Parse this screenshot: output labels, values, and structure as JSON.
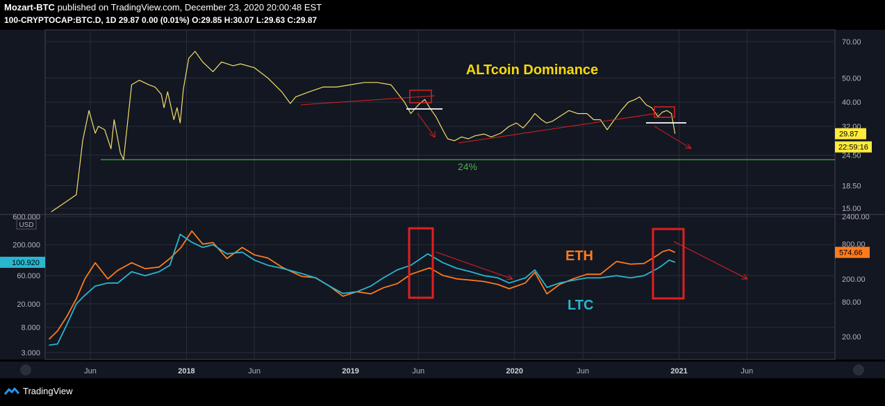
{
  "header": {
    "author": "Mozart-BTC",
    "published_text": "published on TradingView.com, December 23, 2020 20:00:48 EST",
    "symbol_line": "100-CRYPTOCAP:BTC.D, 1D 29.87 0.00 (0.01%) O:29.85 H:30.07 L:29.63 C:29.87"
  },
  "footer": {
    "brand": "TradingView",
    "brand_icon": "tradingview-logo-icon"
  },
  "colors": {
    "background": "#131722",
    "grid": "#2a2e39",
    "altcoin": "#f2e06a",
    "eth": "#ff7b1a",
    "ltc": "#29b6d0",
    "support": "#33cc33",
    "annotation": "#e02020",
    "text": "#b2b5be"
  },
  "chart_data": [
    {
      "type": "line",
      "title": "ALTcoin Dominance",
      "symbol": "100-CRYPTOCAP:BTC.D",
      "interval": "1D",
      "log_scale": true,
      "ylim": [
        15,
        70
      ],
      "y_ticks": [
        "70.00",
        "50.00",
        "40.00",
        "32.00",
        "24.50",
        "18.50",
        "15.00"
      ],
      "x_ticks": [
        "Jun",
        "2018",
        "Jun",
        "2019",
        "Jun",
        "2020",
        "Jun",
        "2021",
        "Jun"
      ],
      "series": [
        {
          "x": [
            "2017-03-06",
            "2017-04-10",
            "2017-05-01",
            "2017-05-15",
            "2017-05-29",
            "2017-06-12",
            "2017-06-19",
            "2017-07-03",
            "2017-07-17",
            "2017-07-24",
            "2017-08-07",
            "2017-08-14",
            "2017-09-01",
            "2017-09-18",
            "2017-10-09",
            "2017-10-23",
            "2017-11-06",
            "2017-11-12",
            "2017-11-20",
            "2017-12-04",
            "2017-12-11",
            "2017-12-18",
            "2017-12-25",
            "2018-01-06",
            "2018-01-20",
            "2018-02-06",
            "2018-03-01",
            "2018-03-20",
            "2018-04-15",
            "2018-05-01",
            "2018-06-01",
            "2018-07-01",
            "2018-08-01",
            "2018-08-20",
            "2018-09-01",
            "2018-10-01",
            "2018-11-01",
            "2018-12-01",
            "2019-01-01",
            "2019-02-01",
            "2019-03-01",
            "2019-04-01",
            "2019-05-01",
            "2019-05-15",
            "2019-06-01",
            "2019-06-15",
            "2019-06-26",
            "2019-07-10",
            "2019-07-25",
            "2019-08-05",
            "2019-08-20",
            "2019-09-05",
            "2019-09-20",
            "2019-10-05",
            "2019-10-25",
            "2019-11-10",
            "2019-12-01",
            "2019-12-20",
            "2020-01-05",
            "2020-01-20",
            "2020-02-05",
            "2020-02-15",
            "2020-03-01",
            "2020-03-12",
            "2020-03-25",
            "2020-04-10",
            "2020-05-01",
            "2020-05-20",
            "2020-06-10",
            "2020-06-25",
            "2020-07-10",
            "2020-07-25",
            "2020-08-10",
            "2020-08-25",
            "2020-09-10",
            "2020-09-25",
            "2020-10-05",
            "2020-10-20",
            "2020-11-01",
            "2020-11-15",
            "2020-11-25",
            "2020-12-05",
            "2020-12-15",
            "2020-12-23"
          ],
          "values": [
            14.5,
            16,
            17,
            28,
            37,
            30,
            32,
            31,
            26,
            34,
            25,
            23.5,
            47,
            49,
            47,
            46,
            43,
            38,
            44,
            34,
            38,
            33,
            45,
            60,
            64,
            58,
            53,
            58,
            56,
            57,
            55,
            50,
            44,
            39.5,
            42,
            44,
            46,
            46,
            47,
            48,
            48,
            47,
            40,
            36,
            39,
            41,
            38,
            35,
            31,
            28.5,
            28,
            29,
            28.5,
            29.3,
            29.8,
            29,
            30,
            32,
            33,
            31.5,
            34,
            36,
            34,
            33,
            33.5,
            35,
            37,
            36,
            36,
            34,
            34,
            31,
            34,
            37,
            40,
            41,
            42,
            39,
            38,
            35,
            36.5,
            37,
            36,
            29.87
          ]
        }
      ],
      "annotations": [
        {
          "label": "24%",
          "value": 23.5
        },
        {
          "label": "last_price",
          "value": "29.87"
        },
        {
          "label": "countdown",
          "value": "22:59:16"
        }
      ]
    },
    {
      "type": "line",
      "ylabel": "USD",
      "log_scale": true,
      "y_ticks_left": [
        "600.000",
        "200.000",
        "60.000",
        "20.000",
        "8.000",
        "3.000"
      ],
      "y_ticks_right": [
        "2400.00",
        "800.00",
        "200.00",
        "80.00",
        "20.00"
      ],
      "left_price_label": "100.920",
      "series": [
        {
          "name": "ETH",
          "axis": "right",
          "last_value": "574.66",
          "x": [
            "2017-03-01",
            "2017-03-20",
            "2017-04-10",
            "2017-05-01",
            "2017-05-20",
            "2017-06-12",
            "2017-07-10",
            "2017-08-01",
            "2017-09-01",
            "2017-10-01",
            "2017-11-01",
            "2017-11-25",
            "2017-12-20",
            "2018-01-13",
            "2018-02-06",
            "2018-03-01",
            "2018-04-01",
            "2018-05-05",
            "2018-06-01",
            "2018-07-01",
            "2018-08-01",
            "2018-09-15",
            "2018-10-15",
            "2018-11-15",
            "2018-12-15",
            "2019-01-15",
            "2019-02-15",
            "2019-03-15",
            "2019-04-15",
            "2019-05-15",
            "2019-06-26",
            "2019-07-25",
            "2019-08-25",
            "2019-09-25",
            "2019-10-25",
            "2019-11-25",
            "2019-12-20",
            "2020-01-25",
            "2020-02-15",
            "2020-03-13",
            "2020-04-10",
            "2020-05-10",
            "2020-06-10",
            "2020-07-10",
            "2020-08-15",
            "2020-09-15",
            "2020-10-15",
            "2020-11-15",
            "2020-11-25",
            "2020-12-10",
            "2020-12-23"
          ],
          "values": [
            18,
            25,
            45,
            90,
            200,
            380,
            200,
            280,
            380,
            300,
            320,
            450,
            700,
            1350,
            800,
            850,
            450,
            700,
            520,
            460,
            320,
            220,
            210,
            150,
            100,
            120,
            110,
            140,
            165,
            240,
            310,
            230,
            200,
            190,
            180,
            160,
            135,
            170,
            260,
            110,
            160,
            200,
            240,
            240,
            400,
            360,
            370,
            520,
            590,
            640,
            574.66
          ]
        },
        {
          "name": "LTC",
          "axis": "left",
          "x": [
            "2017-03-01",
            "2017-03-20",
            "2017-04-10",
            "2017-05-01",
            "2017-05-20",
            "2017-06-12",
            "2017-07-10",
            "2017-08-01",
            "2017-09-01",
            "2017-10-01",
            "2017-11-01",
            "2017-11-25",
            "2017-12-18",
            "2018-01-13",
            "2018-02-06",
            "2018-03-01",
            "2018-04-01",
            "2018-05-05",
            "2018-06-01",
            "2018-07-01",
            "2018-08-01",
            "2018-09-15",
            "2018-10-15",
            "2018-11-15",
            "2018-12-15",
            "2019-01-15",
            "2019-02-15",
            "2019-03-15",
            "2019-04-15",
            "2019-05-15",
            "2019-06-22",
            "2019-07-25",
            "2019-08-25",
            "2019-09-25",
            "2019-10-25",
            "2019-11-25",
            "2019-12-20",
            "2020-01-25",
            "2020-02-15",
            "2020-03-13",
            "2020-04-10",
            "2020-05-10",
            "2020-06-10",
            "2020-07-10",
            "2020-08-15",
            "2020-09-15",
            "2020-10-15",
            "2020-11-15",
            "2020-11-25",
            "2020-12-10",
            "2020-12-23"
          ],
          "values": [
            4,
            4.2,
            9,
            20,
            28,
            40,
            45,
            45,
            70,
            60,
            70,
            90,
            300,
            220,
            180,
            200,
            140,
            150,
            110,
            90,
            80,
            65,
            55,
            40,
            30,
            32,
            40,
            55,
            75,
            90,
            140,
            100,
            80,
            70,
            60,
            55,
            45,
            55,
            75,
            38,
            45,
            50,
            55,
            55,
            60,
            55,
            60,
            80,
            90,
            110,
            100.92
          ]
        }
      ],
      "labels": [
        "ETH",
        "LTC"
      ]
    }
  ]
}
